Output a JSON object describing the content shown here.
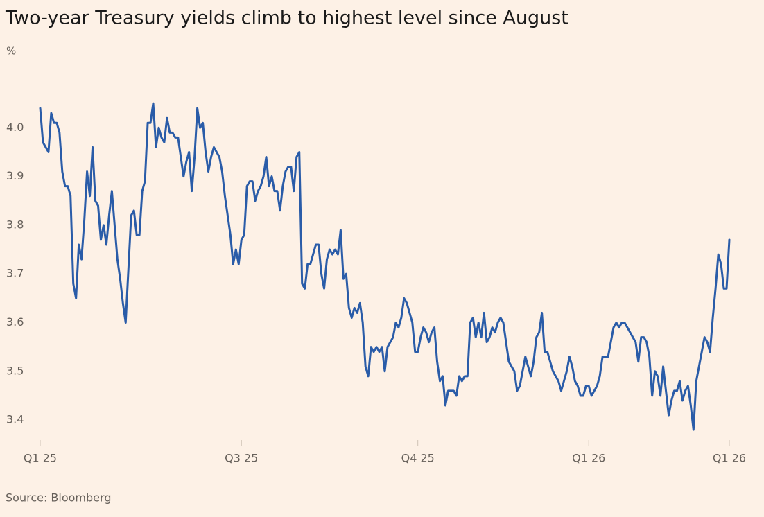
{
  "chart_data": {
    "type": "line",
    "title": "Two-year Treasury yields climb to highest level since August",
    "y_label": "%",
    "source": "Source: Bloomberg",
    "series": [
      {
        "name": "Two-year Treasury yield",
        "color": "#2a5ca8",
        "values": [
          4.04,
          3.97,
          3.96,
          3.95,
          4.03,
          4.01,
          4.01,
          3.99,
          3.91,
          3.88,
          3.88,
          3.86,
          3.68,
          3.65,
          3.76,
          3.73,
          3.81,
          3.91,
          3.86,
          3.96,
          3.85,
          3.84,
          3.77,
          3.8,
          3.76,
          3.82,
          3.87,
          3.8,
          3.73,
          3.69,
          3.64,
          3.6,
          3.71,
          3.82,
          3.83,
          3.78,
          3.78,
          3.87,
          3.89,
          4.01,
          4.01,
          4.05,
          3.96,
          4.0,
          3.98,
          3.97,
          4.02,
          3.99,
          3.99,
          3.98,
          3.98,
          3.94,
          3.9,
          3.93,
          3.95,
          3.87,
          3.94,
          4.04,
          4.0,
          4.01,
          3.95,
          3.91,
          3.94,
          3.96,
          3.95,
          3.94,
          3.91,
          3.86,
          3.82,
          3.78,
          3.72,
          3.75,
          3.72,
          3.77,
          3.78,
          3.88,
          3.89,
          3.89,
          3.85,
          3.87,
          3.88,
          3.9,
          3.94,
          3.88,
          3.9,
          3.87,
          3.87,
          3.83,
          3.88,
          3.91,
          3.92,
          3.92,
          3.87,
          3.94,
          3.95,
          3.68,
          3.67,
          3.72,
          3.72,
          3.74,
          3.76,
          3.76,
          3.7,
          3.67,
          3.73,
          3.75,
          3.74,
          3.75,
          3.74,
          3.79,
          3.69,
          3.7,
          3.63,
          3.61,
          3.63,
          3.62,
          3.64,
          3.6,
          3.51,
          3.49,
          3.55,
          3.54,
          3.55,
          3.54,
          3.55,
          3.5,
          3.55,
          3.56,
          3.57,
          3.6,
          3.59,
          3.61,
          3.65,
          3.64,
          3.62,
          3.6,
          3.54,
          3.54,
          3.57,
          3.59,
          3.58,
          3.56,
          3.58,
          3.59,
          3.52,
          3.48,
          3.49,
          3.43,
          3.46,
          3.46,
          3.46,
          3.45,
          3.49,
          3.48,
          3.49,
          3.49,
          3.6,
          3.61,
          3.57,
          3.6,
          3.57,
          3.62,
          3.56,
          3.57,
          3.59,
          3.58,
          3.6,
          3.61,
          3.6,
          3.56,
          3.52,
          3.51,
          3.5,
          3.46,
          3.47,
          3.5,
          3.53,
          3.51,
          3.49,
          3.52,
          3.57,
          3.58,
          3.62,
          3.54,
          3.54,
          3.52,
          3.5,
          3.49,
          3.48,
          3.46,
          3.48,
          3.5,
          3.53,
          3.51,
          3.48,
          3.47,
          3.45,
          3.45,
          3.47,
          3.47,
          3.45,
          3.46,
          3.47,
          3.49,
          3.53,
          3.53,
          3.53,
          3.56,
          3.59,
          3.6,
          3.59,
          3.6,
          3.6,
          3.59,
          3.58,
          3.57,
          3.56,
          3.52,
          3.57,
          3.57,
          3.56,
          3.53,
          3.45,
          3.5,
          3.49,
          3.45,
          3.51,
          3.46,
          3.41,
          3.44,
          3.46,
          3.46,
          3.48,
          3.44,
          3.46,
          3.47,
          3.43,
          3.38,
          3.48,
          3.51,
          3.54,
          3.57,
          3.56,
          3.54,
          3.61,
          3.67,
          3.74,
          3.72,
          3.67,
          3.67,
          3.77
        ]
      }
    ],
    "xlim": [
      0,
      250
    ],
    "xticks": [
      {
        "value": 0,
        "label": "Q1 25"
      },
      {
        "value": 73,
        "label": "Q3 25"
      },
      {
        "value": 137,
        "label": "Q4 25"
      },
      {
        "value": 199,
        "label": "Q1 26"
      },
      {
        "value": 250,
        "label": "Q1 26"
      }
    ],
    "ylim": [
      3.366,
      4.063
    ],
    "yticks": [
      {
        "value": 4,
        "label": "4.0"
      },
      3.9,
      3.8,
      3.7,
      3.6,
      3.5,
      3.4
    ],
    "grid": false
  }
}
